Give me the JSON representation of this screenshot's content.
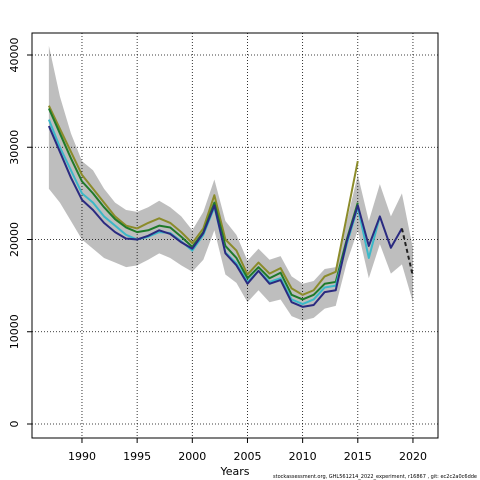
{
  "chart_data": {
    "type": "line",
    "x_label": "Years",
    "note": "stockassessment.org, GHL561214_2022_experiment, r16867 , git: ec2c2a0c6dde",
    "x": [
      1987,
      1988,
      1989,
      1990,
      1991,
      1992,
      1993,
      1994,
      1995,
      1996,
      1997,
      1998,
      1999,
      2000,
      2001,
      2002,
      2003,
      2004,
      2005,
      2006,
      2007,
      2008,
      2009,
      2010,
      2011,
      2012,
      2013,
      2014,
      2015,
      2016,
      2017,
      2018,
      2019,
      2020
    ],
    "band": {
      "color": "#bebebe",
      "upper": [
        41000,
        35500,
        31500,
        28500,
        27500,
        25500,
        24000,
        23200,
        23000,
        23500,
        24200,
        23500,
        22500,
        21000,
        23000,
        26500,
        22000,
        20500,
        17700,
        19000,
        17800,
        18200,
        16000,
        15200,
        15500,
        16800,
        17000,
        22000,
        27000,
        22000,
        26000,
        22500,
        25000,
        19000
      ],
      "lower": [
        25500,
        24000,
        22000,
        20000,
        19000,
        18000,
        17500,
        17000,
        17200,
        17800,
        18500,
        18000,
        17200,
        16500,
        17800,
        21000,
        16200,
        15300,
        13200,
        14500,
        13200,
        13500,
        11700,
        11200,
        11500,
        12500,
        12800,
        17500,
        21000,
        15800,
        19500,
        16300,
        17300,
        13200
      ]
    },
    "series": [
      {
        "color": "#8b8b2a",
        "dashed": false,
        "values": [
          34500,
          32000,
          29500,
          27000,
          25500,
          24000,
          22500,
          21500,
          21200,
          21800,
          22300,
          21800,
          20800,
          19600,
          21200,
          24800,
          20000,
          18800,
          16200,
          17500,
          16300,
          16900,
          14700,
          14000,
          14500,
          16000,
          16500,
          22500,
          28500,
          null,
          null,
          null,
          null,
          null
        ]
      },
      {
        "color": "#1f7a2a",
        "dashed": false,
        "values": [
          34200,
          31500,
          28800,
          26300,
          25000,
          23500,
          22200,
          21300,
          20800,
          21000,
          21500,
          21300,
          20300,
          19200,
          20800,
          24000,
          19300,
          18000,
          15800,
          17000,
          15800,
          16400,
          14000,
          13500,
          14000,
          15200,
          15400,
          20000,
          24000,
          null,
          null,
          null,
          null,
          null
        ]
      },
      {
        "color": "#3bb8c8",
        "dashed": false,
        "values": [
          33000,
          30000,
          27500,
          25000,
          24000,
          22500,
          21500,
          20500,
          20000,
          20300,
          20800,
          20700,
          19800,
          18800,
          20500,
          23500,
          18600,
          17400,
          15400,
          16600,
          15400,
          15800,
          13500,
          13000,
          13500,
          14800,
          15000,
          19500,
          23500,
          18000,
          22500,
          null,
          null,
          null
        ]
      },
      {
        "color": "#2a2a80",
        "dashed": false,
        "values": [
          32300,
          29500,
          26700,
          24300,
          23200,
          21800,
          20800,
          20100,
          20000,
          20400,
          21000,
          20600,
          19700,
          19000,
          20700,
          23700,
          18500,
          17200,
          15200,
          16600,
          15200,
          15600,
          13200,
          12700,
          12900,
          14300,
          14500,
          19800,
          23700,
          19300,
          22500,
          19100,
          21200,
          null
        ]
      },
      {
        "color": "#222222",
        "dashed": true,
        "values": [
          null,
          null,
          null,
          null,
          null,
          null,
          null,
          null,
          null,
          null,
          null,
          null,
          null,
          null,
          null,
          null,
          null,
          null,
          null,
          null,
          null,
          null,
          null,
          null,
          null,
          null,
          null,
          null,
          null,
          null,
          null,
          null,
          21200,
          16000
        ]
      }
    ],
    "xlim": [
      1985.47,
      2022.27
    ],
    "ylim": [
      -1518,
      42385
    ],
    "xticks": [
      1990,
      1995,
      2000,
      2005,
      2010,
      2015,
      2020
    ],
    "yticks": [
      0,
      10000,
      20000,
      30000,
      40000
    ],
    "grid": true
  }
}
